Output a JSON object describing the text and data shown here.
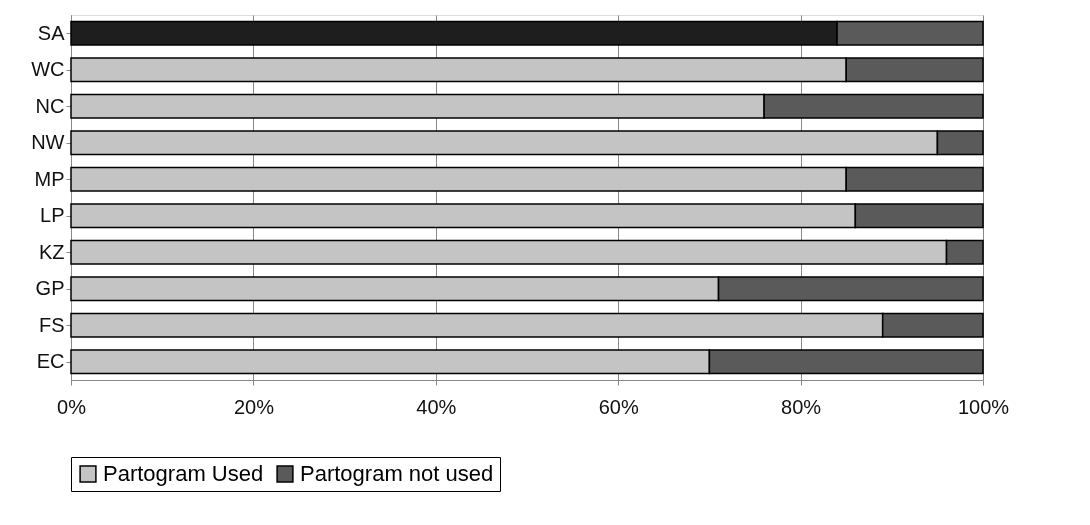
{
  "chart_data": {
    "type": "bar",
    "orientation": "horizontal",
    "stacked": true,
    "categories": [
      "SA",
      "WC",
      "NC",
      "NW",
      "MP",
      "LP",
      "KZ",
      "GP",
      "FS",
      "EC"
    ],
    "series": [
      {
        "name": "Partogram Used",
        "color": "#c4c4c4",
        "colors": [
          "#1e1e1e",
          "#c4c4c4",
          "#c4c4c4",
          "#c4c4c4",
          "#c4c4c4",
          "#c4c4c4",
          "#c4c4c4",
          "#c4c4c4",
          "#c4c4c4",
          "#c4c4c4"
        ],
        "values": [
          84,
          85,
          76,
          95,
          85,
          86,
          96,
          71,
          89,
          70
        ]
      },
      {
        "name": "Partogram not used",
        "color": "#5a5a5a",
        "values": [
          16,
          15,
          24,
          5,
          15,
          14,
          4,
          29,
          11,
          30
        ]
      }
    ],
    "xlim": [
      0,
      100
    ],
    "xticks": [
      {
        "value": 0,
        "label": "0%"
      },
      {
        "value": 20,
        "label": "20%"
      },
      {
        "value": 40,
        "label": "40%"
      },
      {
        "value": 60,
        "label": "60%"
      },
      {
        "value": 80,
        "label": "80%"
      },
      {
        "value": 100,
        "label": "100%"
      }
    ],
    "grid": "x",
    "legend": "bottom"
  }
}
